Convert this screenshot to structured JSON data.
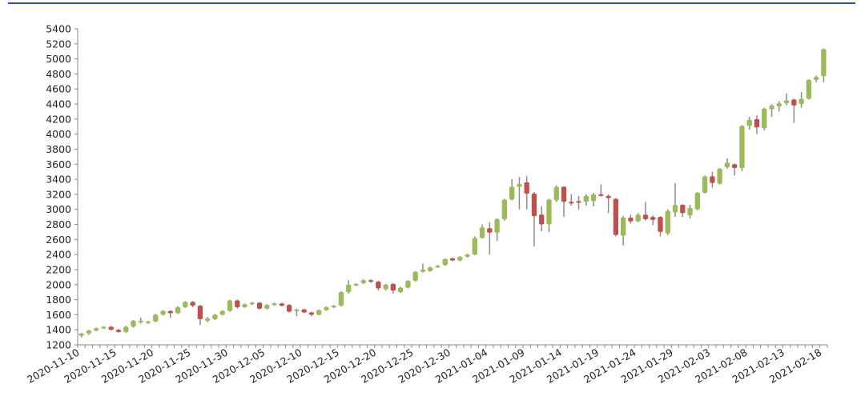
{
  "chart_data": {
    "type": "candlestick",
    "title": "",
    "xlabel": "",
    "ylabel": "",
    "ylim": [
      1200,
      5400
    ],
    "yticks": [
      1200,
      1400,
      1600,
      1800,
      2000,
      2200,
      2400,
      2600,
      2800,
      3000,
      3200,
      3400,
      3600,
      3800,
      4000,
      4200,
      4400,
      4600,
      4800,
      5000,
      5200,
      5400
    ],
    "xtick_labels": [
      "2020-11-10",
      "2020-11-15",
      "2020-11-20",
      "2020-11-25",
      "2020-11-30",
      "2020-12-05",
      "2020-12-10",
      "2020-12-15",
      "2020-12-20",
      "2020-12-25",
      "2020-12-30",
      "2021-01-04",
      "2021-01-09",
      "2021-01-14",
      "2021-01-19",
      "2021-01-24",
      "2021-01-29",
      "2021-02-03",
      "2021-02-08",
      "2021-02-13",
      "2021-02-18"
    ],
    "label_every": 5,
    "ohlc_order": [
      "open",
      "close",
      "low",
      "high"
    ],
    "candles": [
      [
        1320,
        1350,
        1300,
        1360
      ],
      [
        1350,
        1390,
        1330,
        1400
      ],
      [
        1390,
        1420,
        1380,
        1430
      ],
      [
        1420,
        1440,
        1410,
        1450
      ],
      [
        1440,
        1400,
        1390,
        1450
      ],
      [
        1400,
        1370,
        1360,
        1410
      ],
      [
        1370,
        1440,
        1360,
        1450
      ],
      [
        1440,
        1520,
        1430,
        1530
      ],
      [
        1500,
        1520,
        1480,
        1560
      ],
      [
        1490,
        1510,
        1480,
        1520
      ],
      [
        1510,
        1600,
        1500,
        1610
      ],
      [
        1600,
        1650,
        1590,
        1660
      ],
      [
        1650,
        1620,
        1560,
        1660
      ],
      [
        1620,
        1700,
        1610,
        1710
      ],
      [
        1700,
        1770,
        1690,
        1780
      ],
      [
        1770,
        1720,
        1700,
        1780
      ],
      [
        1720,
        1540,
        1460,
        1730
      ],
      [
        1520,
        1550,
        1500,
        1570
      ],
      [
        1540,
        1600,
        1530,
        1610
      ],
      [
        1600,
        1650,
        1590,
        1660
      ],
      [
        1650,
        1790,
        1640,
        1800
      ],
      [
        1790,
        1700,
        1680,
        1800
      ],
      [
        1700,
        1740,
        1690,
        1750
      ],
      [
        1740,
        1760,
        1730,
        1770
      ],
      [
        1760,
        1680,
        1670,
        1770
      ],
      [
        1680,
        1730,
        1670,
        1740
      ],
      [
        1730,
        1750,
        1720,
        1760
      ],
      [
        1750,
        1720,
        1710,
        1760
      ],
      [
        1730,
        1640,
        1630,
        1740
      ],
      [
        1650,
        1670,
        1580,
        1680
      ],
      [
        1670,
        1630,
        1620,
        1680
      ],
      [
        1630,
        1600,
        1580,
        1640
      ],
      [
        1600,
        1660,
        1590,
        1670
      ],
      [
        1660,
        1700,
        1650,
        1710
      ],
      [
        1700,
        1720,
        1690,
        1730
      ],
      [
        1720,
        1900,
        1710,
        1910
      ],
      [
        1900,
        2000,
        1880,
        2060
      ],
      [
        1990,
        2010,
        1980,
        2020
      ],
      [
        2020,
        2060,
        2010,
        2070
      ],
      [
        2060,
        2040,
        2020,
        2070
      ],
      [
        2040,
        1950,
        1920,
        2050
      ],
      [
        1940,
        2000,
        1920,
        2010
      ],
      [
        2010,
        1920,
        1880,
        2020
      ],
      [
        1900,
        1960,
        1890,
        1970
      ],
      [
        1960,
        2050,
        1950,
        2060
      ],
      [
        2050,
        2170,
        2040,
        2180
      ],
      [
        2170,
        2200,
        2160,
        2280
      ],
      [
        2180,
        2230,
        2170,
        2240
      ],
      [
        2230,
        2250,
        2220,
        2260
      ],
      [
        2260,
        2340,
        2250,
        2350
      ],
      [
        2350,
        2320,
        2310,
        2360
      ],
      [
        2320,
        2370,
        2310,
        2380
      ],
      [
        2370,
        2400,
        2360,
        2410
      ],
      [
        2400,
        2620,
        2390,
        2640
      ],
      [
        2620,
        2760,
        2610,
        2800
      ],
      [
        2750,
        2690,
        2400,
        2830
      ],
      [
        2690,
        2870,
        2580,
        2880
      ],
      [
        2870,
        3130,
        2850,
        3140
      ],
      [
        3130,
        3300,
        3120,
        3400
      ],
      [
        3300,
        3340,
        3000,
        3430
      ],
      [
        3360,
        3210,
        3000,
        3440
      ],
      [
        3210,
        2910,
        2510,
        3230
      ],
      [
        2930,
        2800,
        2710,
        3040
      ],
      [
        2800,
        3130,
        2700,
        3140
      ],
      [
        3120,
        3300,
        3100,
        3320
      ],
      [
        3300,
        3100,
        2900,
        3310
      ],
      [
        3100,
        3080,
        3050,
        3200
      ],
      [
        3110,
        3090,
        3000,
        3180
      ],
      [
        3100,
        3180,
        3050,
        3200
      ],
      [
        3110,
        3200,
        3040,
        3220
      ],
      [
        3200,
        3180,
        3170,
        3330
      ],
      [
        3180,
        3150,
        2950,
        3200
      ],
      [
        3140,
        2660,
        2640,
        3150
      ],
      [
        2650,
        2890,
        2520,
        2910
      ],
      [
        2890,
        2840,
        2810,
        2930
      ],
      [
        2840,
        2930,
        2830,
        2950
      ],
      [
        2930,
        2870,
        2850,
        3100
      ],
      [
        2900,
        2860,
        2790,
        2920
      ],
      [
        2900,
        2700,
        2640,
        2910
      ],
      [
        2680,
        2980,
        2660,
        3000
      ],
      [
        2960,
        3060,
        2900,
        3350
      ],
      [
        3060,
        2950,
        2900,
        3070
      ],
      [
        2920,
        3020,
        2880,
        3060
      ],
      [
        3000,
        3220,
        2990,
        3230
      ],
      [
        3220,
        3440,
        3210,
        3450
      ],
      [
        3440,
        3350,
        3290,
        3500
      ],
      [
        3340,
        3540,
        3330,
        3550
      ],
      [
        3560,
        3620,
        3540,
        3680
      ],
      [
        3600,
        3550,
        3450,
        3610
      ],
      [
        3550,
        4110,
        3510,
        4120
      ],
      [
        4110,
        4190,
        4060,
        4230
      ],
      [
        4200,
        4090,
        4000,
        4250
      ],
      [
        4080,
        4340,
        4050,
        4350
      ],
      [
        4330,
        4380,
        4230,
        4400
      ],
      [
        4370,
        4410,
        4300,
        4440
      ],
      [
        4410,
        4450,
        4380,
        4540
      ],
      [
        4460,
        4380,
        4150,
        4470
      ],
      [
        4400,
        4470,
        4350,
        4560
      ],
      [
        4470,
        4720,
        4460,
        4730
      ],
      [
        4720,
        4760,
        4690,
        4780
      ],
      [
        4770,
        5130,
        4690,
        5140
      ]
    ],
    "colors": {
      "up": "#9bbb59",
      "down": "#c0504d",
      "wick": "#8c8c8c",
      "axis": "#888888",
      "top_rule": "#2f5597"
    },
    "grid": false,
    "legend": "none"
  }
}
